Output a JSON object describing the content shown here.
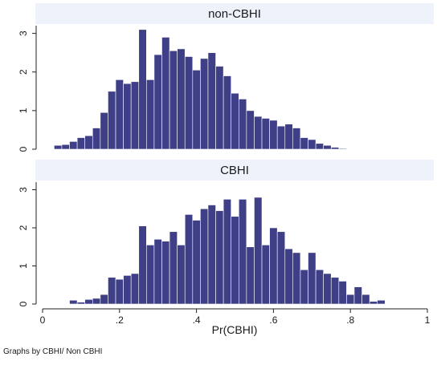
{
  "chart_data": [
    {
      "type": "bar",
      "title": "non-CBHI",
      "xlabel": "",
      "ylabel": "",
      "ylim": [
        0,
        3.2
      ],
      "xlim": [
        0,
        1
      ],
      "bin_width": 0.02,
      "y_ticks": [
        0,
        1,
        2,
        3
      ],
      "y_tick_labels": [
        "0",
        "1",
        "2",
        "3"
      ],
      "grid": false,
      "x": [
        0.04,
        0.06,
        0.08,
        0.1,
        0.12,
        0.14,
        0.16,
        0.18,
        0.2,
        0.22,
        0.24,
        0.26,
        0.28,
        0.3,
        0.32,
        0.34,
        0.36,
        0.38,
        0.4,
        0.42,
        0.44,
        0.46,
        0.48,
        0.5,
        0.52,
        0.54,
        0.56,
        0.58,
        0.6,
        0.62,
        0.64,
        0.66,
        0.68,
        0.7,
        0.72,
        0.74,
        0.76,
        0.78,
        0.8,
        0.82
      ],
      "values": [
        0.1,
        0.12,
        0.2,
        0.3,
        0.35,
        0.55,
        0.95,
        1.5,
        1.8,
        1.7,
        1.75,
        3.1,
        1.8,
        2.45,
        2.9,
        2.55,
        2.6,
        2.4,
        2.05,
        2.35,
        2.5,
        2.15,
        1.9,
        1.45,
        1.3,
        1.0,
        0.85,
        0.8,
        0.75,
        0.6,
        0.65,
        0.55,
        0.3,
        0.25,
        0.15,
        0.1,
        0.05,
        0.02,
        0.0,
        0.0
      ]
    },
    {
      "type": "bar",
      "title": "CBHI",
      "xlabel": "Pr(CBHI)",
      "ylabel": "",
      "ylim": [
        0,
        3.2
      ],
      "xlim": [
        0,
        1
      ],
      "bin_width": 0.02,
      "y_ticks": [
        0,
        1,
        2,
        3
      ],
      "y_tick_labels": [
        "0",
        "1",
        "2",
        "3"
      ],
      "x_ticks": [
        0,
        0.2,
        0.4,
        0.6,
        0.8,
        1
      ],
      "x_tick_labels": [
        "0",
        ".2",
        ".4",
        ".6",
        ".8",
        "1"
      ],
      "grid": false,
      "x": [
        0.04,
        0.06,
        0.08,
        0.1,
        0.12,
        0.14,
        0.16,
        0.18,
        0.2,
        0.22,
        0.24,
        0.26,
        0.28,
        0.3,
        0.32,
        0.34,
        0.36,
        0.38,
        0.4,
        0.42,
        0.44,
        0.46,
        0.48,
        0.5,
        0.52,
        0.54,
        0.56,
        0.58,
        0.6,
        0.62,
        0.64,
        0.66,
        0.68,
        0.7,
        0.72,
        0.74,
        0.76,
        0.78,
        0.8,
        0.82,
        0.84,
        0.86,
        0.88
      ],
      "values": [
        0.0,
        0.0,
        0.1,
        0.05,
        0.12,
        0.15,
        0.25,
        0.7,
        0.65,
        0.75,
        0.8,
        2.05,
        1.55,
        1.7,
        1.65,
        1.9,
        1.55,
        2.35,
        2.2,
        2.5,
        2.6,
        2.45,
        2.75,
        2.3,
        2.75,
        1.5,
        2.8,
        1.55,
        2.0,
        1.9,
        1.45,
        1.35,
        0.9,
        1.35,
        0.9,
        0.8,
        0.7,
        0.6,
        0.25,
        0.45,
        0.25,
        0.07,
        0.1
      ]
    }
  ],
  "note": "Graphs by CBHI/ Non CBHI"
}
